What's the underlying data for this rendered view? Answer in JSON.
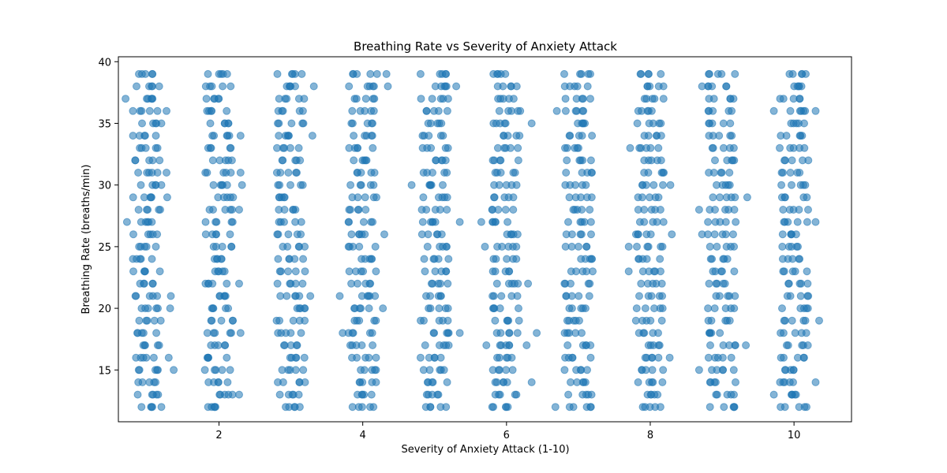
{
  "chart_data": {
    "type": "scatter",
    "title": "Breathing Rate vs Severity of Anxiety Attack",
    "xlabel": "Severity of Anxiety Attack (1-10)",
    "ylabel": "Breathing Rate (breaths/min)",
    "xlim": [
      0.6,
      10.8
    ],
    "ylim": [
      10.8,
      40.4
    ],
    "x_ticks": [
      2,
      4,
      6,
      8,
      10
    ],
    "y_ticks": [
      15,
      20,
      25,
      30,
      35,
      40
    ],
    "grid": false,
    "legend": "none",
    "point_color": "#1f77b4",
    "point_alpha": 0.55,
    "severity_levels": [
      1,
      2,
      3,
      4,
      5,
      6,
      7,
      8,
      9,
      10
    ],
    "breathing_rates": [
      12,
      13,
      14,
      15,
      16,
      17,
      18,
      19,
      20,
      21,
      22,
      23,
      24,
      25,
      26,
      27,
      28,
      29,
      30,
      31,
      32,
      33,
      34,
      35,
      36,
      37,
      38,
      39
    ],
    "jitter": 0.2,
    "points_per_cell": 5,
    "outliers": [
      {
        "x": 0.7,
        "y": 37
      },
      {
        "x": 0.72,
        "y": 27
      },
      {
        "x": 1.28,
        "y": 29
      },
      {
        "x": 1.33,
        "y": 21
      },
      {
        "x": 1.32,
        "y": 20
      },
      {
        "x": 1.3,
        "y": 16
      },
      {
        "x": 1.37,
        "y": 15
      },
      {
        "x": 1.27,
        "y": 36
      },
      {
        "x": 1.27,
        "y": 31
      },
      {
        "x": 2.3,
        "y": 34
      },
      {
        "x": 2.3,
        "y": 31
      },
      {
        "x": 2.32,
        "y": 30
      },
      {
        "x": 2.28,
        "y": 28
      },
      {
        "x": 2.28,
        "y": 22
      },
      {
        "x": 2.3,
        "y": 18
      },
      {
        "x": 2.28,
        "y": 13
      },
      {
        "x": 3.32,
        "y": 38
      },
      {
        "x": 3.3,
        "y": 34
      },
      {
        "x": 3.27,
        "y": 21
      },
      {
        "x": 3.68,
        "y": 21
      },
      {
        "x": 4.3,
        "y": 26
      },
      {
        "x": 4.28,
        "y": 20
      },
      {
        "x": 4.35,
        "y": 38
      },
      {
        "x": 4.33,
        "y": 39
      },
      {
        "x": 3.72,
        "y": 18
      },
      {
        "x": 4.68,
        "y": 30
      },
      {
        "x": 5.3,
        "y": 38
      },
      {
        "x": 5.35,
        "y": 27
      },
      {
        "x": 5.35,
        "y": 18
      },
      {
        "x": 5.65,
        "y": 27
      },
      {
        "x": 5.7,
        "y": 25
      },
      {
        "x": 5.72,
        "y": 17
      },
      {
        "x": 6.35,
        "y": 35
      },
      {
        "x": 6.42,
        "y": 18
      },
      {
        "x": 6.3,
        "y": 22
      },
      {
        "x": 6.28,
        "y": 17
      },
      {
        "x": 6.35,
        "y": 14
      },
      {
        "x": 6.68,
        "y": 12
      },
      {
        "x": 6.7,
        "y": 36
      },
      {
        "x": 7.72,
        "y": 33
      },
      {
        "x": 7.7,
        "y": 25
      },
      {
        "x": 7.7,
        "y": 23
      },
      {
        "x": 8.28,
        "y": 30
      },
      {
        "x": 8.3,
        "y": 26
      },
      {
        "x": 8.27,
        "y": 16
      },
      {
        "x": 8.68,
        "y": 28
      },
      {
        "x": 8.72,
        "y": 26
      },
      {
        "x": 8.72,
        "y": 38
      },
      {
        "x": 8.68,
        "y": 15
      },
      {
        "x": 9.35,
        "y": 29
      },
      {
        "x": 9.33,
        "y": 17
      },
      {
        "x": 9.72,
        "y": 36
      },
      {
        "x": 9.72,
        "y": 13
      },
      {
        "x": 10.3,
        "y": 27
      },
      {
        "x": 10.35,
        "y": 19
      },
      {
        "x": 10.3,
        "y": 14
      },
      {
        "x": 10.3,
        "y": 36
      }
    ]
  }
}
